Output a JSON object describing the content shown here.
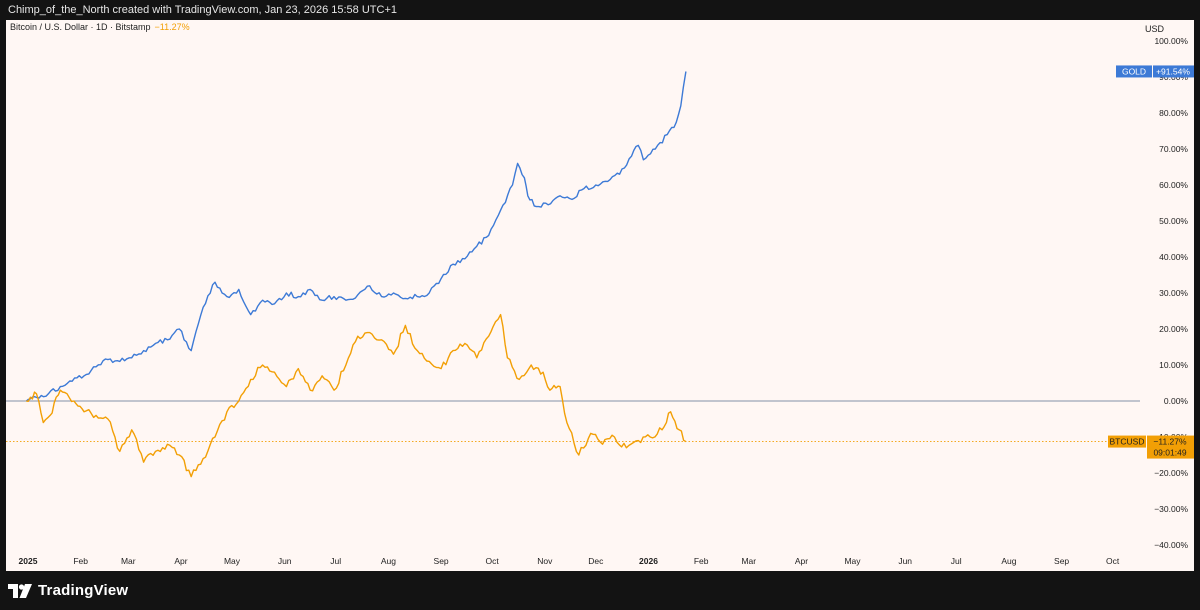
{
  "header": {
    "credit": "Chimp_of_the_North created with TradingView.com, Jan 23, 2026 15:58 UTC+1"
  },
  "legend": {
    "symbol_text": "Bitcoin / U.S. Dollar · 1D · Bitstamp",
    "change_text": "−11.27%"
  },
  "axis": {
    "currency": "USD"
  },
  "footer": {
    "brand": "TradingView"
  },
  "colors": {
    "gold": "#3d7ad6",
    "btc": "#f29f05",
    "background": "#fff7f4",
    "frame": "#131313"
  },
  "chart_data": {
    "type": "line",
    "y_unit": "percent change",
    "ylim": [
      -40,
      100
    ],
    "y_ticks": [
      100,
      90,
      80,
      70,
      60,
      50,
      40,
      30,
      20,
      10,
      0,
      -10,
      -20,
      -30,
      -40
    ],
    "y_tick_labels": [
      "100.00%",
      "90.00%",
      "80.00%",
      "70.00%",
      "60.00%",
      "50.00%",
      "40.00%",
      "30.00%",
      "20.00%",
      "10.00%",
      "0.00%",
      "−10.00%",
      "−20.00%",
      "−30.00%",
      "−40.00%"
    ],
    "x_ticks": [
      {
        "label": "2025",
        "date": "2025-01-01",
        "bold": true
      },
      {
        "label": "Feb",
        "date": "2025-02-01"
      },
      {
        "label": "Mar",
        "date": "2025-03-01"
      },
      {
        "label": "Apr",
        "date": "2025-04-01"
      },
      {
        "label": "May",
        "date": "2025-05-01"
      },
      {
        "label": "Jun",
        "date": "2025-06-01"
      },
      {
        "label": "Jul",
        "date": "2025-07-01"
      },
      {
        "label": "Aug",
        "date": "2025-08-01"
      },
      {
        "label": "Sep",
        "date": "2025-09-01"
      },
      {
        "label": "Oct",
        "date": "2025-10-01"
      },
      {
        "label": "Nov",
        "date": "2025-11-01"
      },
      {
        "label": "Dec",
        "date": "2025-12-01"
      },
      {
        "label": "2026",
        "date": "2026-01-01",
        "bold": true
      },
      {
        "label": "Feb",
        "date": "2026-02-01"
      },
      {
        "label": "Mar",
        "date": "2026-03-01"
      },
      {
        "label": "Apr",
        "date": "2026-04-01"
      },
      {
        "label": "May",
        "date": "2026-05-01"
      },
      {
        "label": "Jun",
        "date": "2026-06-01"
      },
      {
        "label": "Jul",
        "date": "2026-07-01"
      },
      {
        "label": "Aug",
        "date": "2026-08-01"
      },
      {
        "label": "Sep",
        "date": "2026-09-01"
      },
      {
        "label": "Oct",
        "date": "2026-10-01"
      }
    ],
    "baseline": 0,
    "series": [
      {
        "name": "GOLD",
        "last_label": "+91.54%",
        "points": [
          [
            "2024-12-31",
            0
          ],
          [
            "2025-01-06",
            1
          ],
          [
            "2025-01-13",
            2
          ],
          [
            "2025-01-20",
            4
          ],
          [
            "2025-01-27",
            5.5
          ],
          [
            "2025-02-03",
            7
          ],
          [
            "2025-02-10",
            9.5
          ],
          [
            "2025-02-17",
            11.5
          ],
          [
            "2025-02-24",
            11
          ],
          [
            "2025-03-03",
            12
          ],
          [
            "2025-03-10",
            14
          ],
          [
            "2025-03-17",
            16
          ],
          [
            "2025-03-24",
            17
          ],
          [
            "2025-03-31",
            20
          ],
          [
            "2025-04-07",
            14
          ],
          [
            "2025-04-14",
            26
          ],
          [
            "2025-04-21",
            33
          ],
          [
            "2025-04-28",
            29
          ],
          [
            "2025-05-05",
            31
          ],
          [
            "2025-05-12",
            24
          ],
          [
            "2025-05-19",
            28
          ],
          [
            "2025-05-26",
            27
          ],
          [
            "2025-06-02",
            30
          ],
          [
            "2025-06-09",
            29
          ],
          [
            "2025-06-16",
            31
          ],
          [
            "2025-06-23",
            28
          ],
          [
            "2025-06-30",
            29
          ],
          [
            "2025-07-07",
            28
          ],
          [
            "2025-07-14",
            29.5
          ],
          [
            "2025-07-21",
            32
          ],
          [
            "2025-07-28",
            29
          ],
          [
            "2025-08-04",
            30
          ],
          [
            "2025-08-11",
            28.5
          ],
          [
            "2025-08-18",
            29
          ],
          [
            "2025-08-25",
            30
          ],
          [
            "2025-09-01",
            34
          ],
          [
            "2025-09-08",
            38
          ],
          [
            "2025-09-15",
            39.5
          ],
          [
            "2025-09-22",
            43
          ],
          [
            "2025-09-29",
            46
          ],
          [
            "2025-10-06",
            53
          ],
          [
            "2025-10-13",
            60
          ],
          [
            "2025-10-16",
            66
          ],
          [
            "2025-10-20",
            62
          ],
          [
            "2025-10-22",
            57
          ],
          [
            "2025-10-27",
            54
          ],
          [
            "2025-11-03",
            54.5
          ],
          [
            "2025-11-10",
            57
          ],
          [
            "2025-11-17",
            56
          ],
          [
            "2025-11-24",
            59
          ],
          [
            "2025-12-01",
            60
          ],
          [
            "2025-12-08",
            61
          ],
          [
            "2025-12-15",
            63
          ],
          [
            "2025-12-22",
            68
          ],
          [
            "2025-12-26",
            71
          ],
          [
            "2025-12-29",
            67
          ],
          [
            "2026-01-05",
            70
          ],
          [
            "2026-01-12",
            74
          ],
          [
            "2026-01-16",
            76
          ],
          [
            "2026-01-20",
            82
          ],
          [
            "2026-01-23",
            91.54
          ]
        ]
      },
      {
        "name": "BTCUSD",
        "last_label": "−11.27%",
        "countdown": "09:01:49",
        "points": [
          [
            "2024-12-31",
            0
          ],
          [
            "2025-01-06",
            2
          ],
          [
            "2025-01-10",
            -6
          ],
          [
            "2025-01-14",
            -4
          ],
          [
            "2025-01-20",
            3
          ],
          [
            "2025-01-24",
            2
          ],
          [
            "2025-01-28",
            0
          ],
          [
            "2025-02-03",
            -3
          ],
          [
            "2025-02-10",
            -4
          ],
          [
            "2025-02-17",
            -5
          ],
          [
            "2025-02-24",
            -14
          ],
          [
            "2025-03-03",
            -8
          ],
          [
            "2025-03-10",
            -17
          ],
          [
            "2025-03-17",
            -14
          ],
          [
            "2025-03-24",
            -12
          ],
          [
            "2025-03-31",
            -15
          ],
          [
            "2025-04-07",
            -21
          ],
          [
            "2025-04-14",
            -16
          ],
          [
            "2025-04-21",
            -10
          ],
          [
            "2025-04-28",
            -3
          ],
          [
            "2025-05-05",
            0
          ],
          [
            "2025-05-12",
            6
          ],
          [
            "2025-05-19",
            10
          ],
          [
            "2025-05-26",
            8
          ],
          [
            "2025-06-02",
            4
          ],
          [
            "2025-06-09",
            9
          ],
          [
            "2025-06-16",
            3
          ],
          [
            "2025-06-23",
            7
          ],
          [
            "2025-06-30",
            3
          ],
          [
            "2025-07-07",
            10
          ],
          [
            "2025-07-14",
            18
          ],
          [
            "2025-07-21",
            19
          ],
          [
            "2025-07-28",
            17
          ],
          [
            "2025-08-04",
            13
          ],
          [
            "2025-08-11",
            21
          ],
          [
            "2025-08-18",
            14
          ],
          [
            "2025-08-25",
            11
          ],
          [
            "2025-09-01",
            9
          ],
          [
            "2025-09-08",
            14
          ],
          [
            "2025-09-15",
            16
          ],
          [
            "2025-09-22",
            12
          ],
          [
            "2025-09-29",
            18
          ],
          [
            "2025-10-03",
            22
          ],
          [
            "2025-10-06",
            24
          ],
          [
            "2025-10-10",
            12
          ],
          [
            "2025-10-17",
            6
          ],
          [
            "2025-10-24",
            10
          ],
          [
            "2025-10-31",
            8
          ],
          [
            "2025-11-04",
            3
          ],
          [
            "2025-11-10",
            4
          ],
          [
            "2025-11-14",
            -6
          ],
          [
            "2025-11-21",
            -15
          ],
          [
            "2025-11-28",
            -9
          ],
          [
            "2025-12-05",
            -12
          ],
          [
            "2025-12-12",
            -10
          ],
          [
            "2025-12-19",
            -13
          ],
          [
            "2025-12-26",
            -11
          ],
          [
            "2026-01-02",
            -10
          ],
          [
            "2026-01-09",
            -8
          ],
          [
            "2026-01-14",
            -3
          ],
          [
            "2026-01-19",
            -8
          ],
          [
            "2026-01-23",
            -11.27
          ]
        ]
      }
    ]
  }
}
